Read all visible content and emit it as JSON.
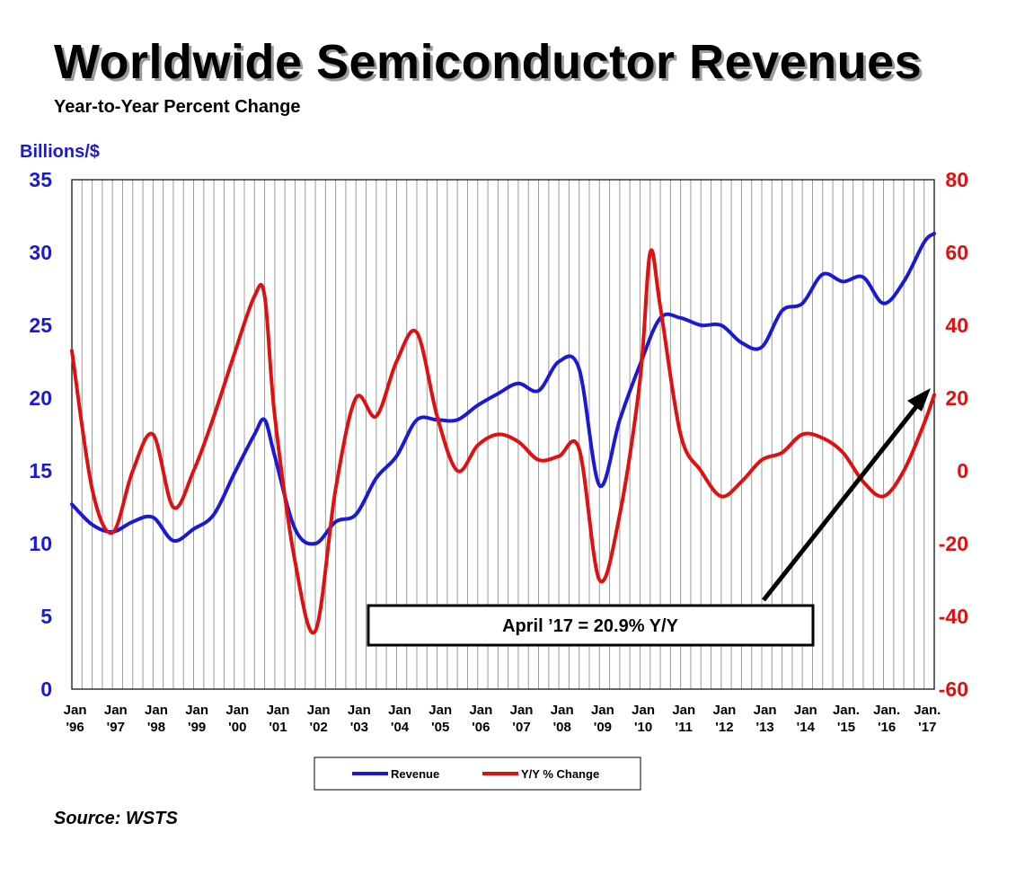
{
  "title": "Worldwide Semiconductor Revenues",
  "subtitle": "Year-to-Year Percent Change",
  "source": "Source: WSTS",
  "chart_data": {
    "type": "line",
    "ylabel": "Billions/$",
    "ylim": [
      0,
      35
    ],
    "yticks": [
      "0",
      "5",
      "10",
      "15",
      "20",
      "25",
      "30",
      "35"
    ],
    "y2lim": [
      -60,
      80
    ],
    "y2ticks": [
      "-60",
      "-40",
      "-20",
      "0",
      "20",
      "40",
      "60",
      "80"
    ],
    "grid": "vertical",
    "legend_position": "bottom",
    "x_range": [
      "Jan 1996",
      "Apr 2017"
    ],
    "xtick_labels": [
      [
        "Jan",
        "'96"
      ],
      [
        "Jan",
        "'97"
      ],
      [
        "Jan",
        "'98"
      ],
      [
        "Jan",
        "'99"
      ],
      [
        "Jan",
        "'00"
      ],
      [
        "Jan",
        "'01"
      ],
      [
        "Jan",
        "'02"
      ],
      [
        "Jan",
        "'03"
      ],
      [
        "Jan",
        "'04"
      ],
      [
        "Jan",
        "'05"
      ],
      [
        "Jan",
        "'06"
      ],
      [
        "Jan",
        "'07"
      ],
      [
        "Jan",
        "'08"
      ],
      [
        "Jan",
        "'09"
      ],
      [
        "Jan",
        "'10"
      ],
      [
        "Jan",
        "'11"
      ],
      [
        "Jan",
        "'12"
      ],
      [
        "Jan",
        "'13"
      ],
      [
        "Jan",
        "'14"
      ],
      [
        "Jan.",
        "'15"
      ],
      [
        "Jan.",
        "'16"
      ],
      [
        "Jan.",
        "'17"
      ]
    ],
    "annotation": "April ’17 = 20.9% Y/Y",
    "series": [
      {
        "name": "Revenue",
        "axis": "left",
        "color": "#1a1ad6",
        "points": [
          [
            "1996-01",
            12.7
          ],
          [
            "1996-07",
            11.3
          ],
          [
            "1997-01",
            10.8
          ],
          [
            "1997-07",
            11.5
          ],
          [
            "1998-01",
            11.8
          ],
          [
            "1998-07",
            10.2
          ],
          [
            "1999-01",
            11.0
          ],
          [
            "1999-07",
            12.0
          ],
          [
            "2000-01",
            14.8
          ],
          [
            "2000-07",
            17.5
          ],
          [
            "2000-10",
            18.5
          ],
          [
            "2001-01",
            16.0
          ],
          [
            "2001-07",
            11.0
          ],
          [
            "2002-01",
            10.0
          ],
          [
            "2002-07",
            11.5
          ],
          [
            "2003-01",
            12.0
          ],
          [
            "2003-07",
            14.5
          ],
          [
            "2004-01",
            16.0
          ],
          [
            "2004-07",
            18.5
          ],
          [
            "2005-01",
            18.5
          ],
          [
            "2005-07",
            18.5
          ],
          [
            "2006-01",
            19.5
          ],
          [
            "2006-07",
            20.3
          ],
          [
            "2007-01",
            21.0
          ],
          [
            "2007-07",
            20.5
          ],
          [
            "2008-01",
            22.5
          ],
          [
            "2008-07",
            22.0
          ],
          [
            "2009-01",
            14.0
          ],
          [
            "2009-07",
            18.5
          ],
          [
            "2010-01",
            22.3
          ],
          [
            "2010-07",
            25.5
          ],
          [
            "2011-01",
            25.5
          ],
          [
            "2011-07",
            25.0
          ],
          [
            "2012-01",
            25.0
          ],
          [
            "2012-07",
            23.8
          ],
          [
            "2013-01",
            23.5
          ],
          [
            "2013-07",
            26.0
          ],
          [
            "2014-01",
            26.5
          ],
          [
            "2014-07",
            28.5
          ],
          [
            "2015-01",
            28.0
          ],
          [
            "2015-07",
            28.3
          ],
          [
            "2016-01",
            26.5
          ],
          [
            "2016-07",
            28.0
          ],
          [
            "2017-01",
            30.7
          ],
          [
            "2017-04",
            31.3
          ]
        ]
      },
      {
        "name": "Y/Y % Change",
        "axis": "right",
        "color": "#e01010",
        "points": [
          [
            "1996-01",
            33
          ],
          [
            "1996-07",
            -5
          ],
          [
            "1997-01",
            -17
          ],
          [
            "1997-07",
            0
          ],
          [
            "1998-01",
            10
          ],
          [
            "1998-07",
            -10
          ],
          [
            "1999-01",
            0
          ],
          [
            "1999-07",
            15
          ],
          [
            "2000-01",
            32
          ],
          [
            "2000-07",
            48
          ],
          [
            "2000-10",
            48
          ],
          [
            "2001-01",
            15
          ],
          [
            "2001-07",
            -25
          ],
          [
            "2002-01",
            -44
          ],
          [
            "2002-07",
            -5
          ],
          [
            "2003-01",
            20
          ],
          [
            "2003-07",
            15
          ],
          [
            "2004-01",
            30
          ],
          [
            "2004-07",
            38
          ],
          [
            "2005-01",
            15
          ],
          [
            "2005-07",
            0
          ],
          [
            "2006-01",
            7
          ],
          [
            "2006-07",
            10
          ],
          [
            "2007-01",
            8
          ],
          [
            "2007-07",
            3
          ],
          [
            "2008-01",
            4
          ],
          [
            "2008-07",
            6
          ],
          [
            "2009-01",
            -30
          ],
          [
            "2009-07",
            -12
          ],
          [
            "2010-01",
            25
          ],
          [
            "2010-04",
            60
          ],
          [
            "2010-07",
            45
          ],
          [
            "2011-01",
            10
          ],
          [
            "2011-07",
            0
          ],
          [
            "2012-01",
            -7
          ],
          [
            "2012-07",
            -3
          ],
          [
            "2013-01",
            3
          ],
          [
            "2013-07",
            5
          ],
          [
            "2014-01",
            10
          ],
          [
            "2014-07",
            9
          ],
          [
            "2015-01",
            5
          ],
          [
            "2015-07",
            -3
          ],
          [
            "2016-01",
            -7
          ],
          [
            "2016-07",
            0
          ],
          [
            "2017-01",
            13
          ],
          [
            "2017-04",
            20.9
          ]
        ]
      }
    ]
  }
}
